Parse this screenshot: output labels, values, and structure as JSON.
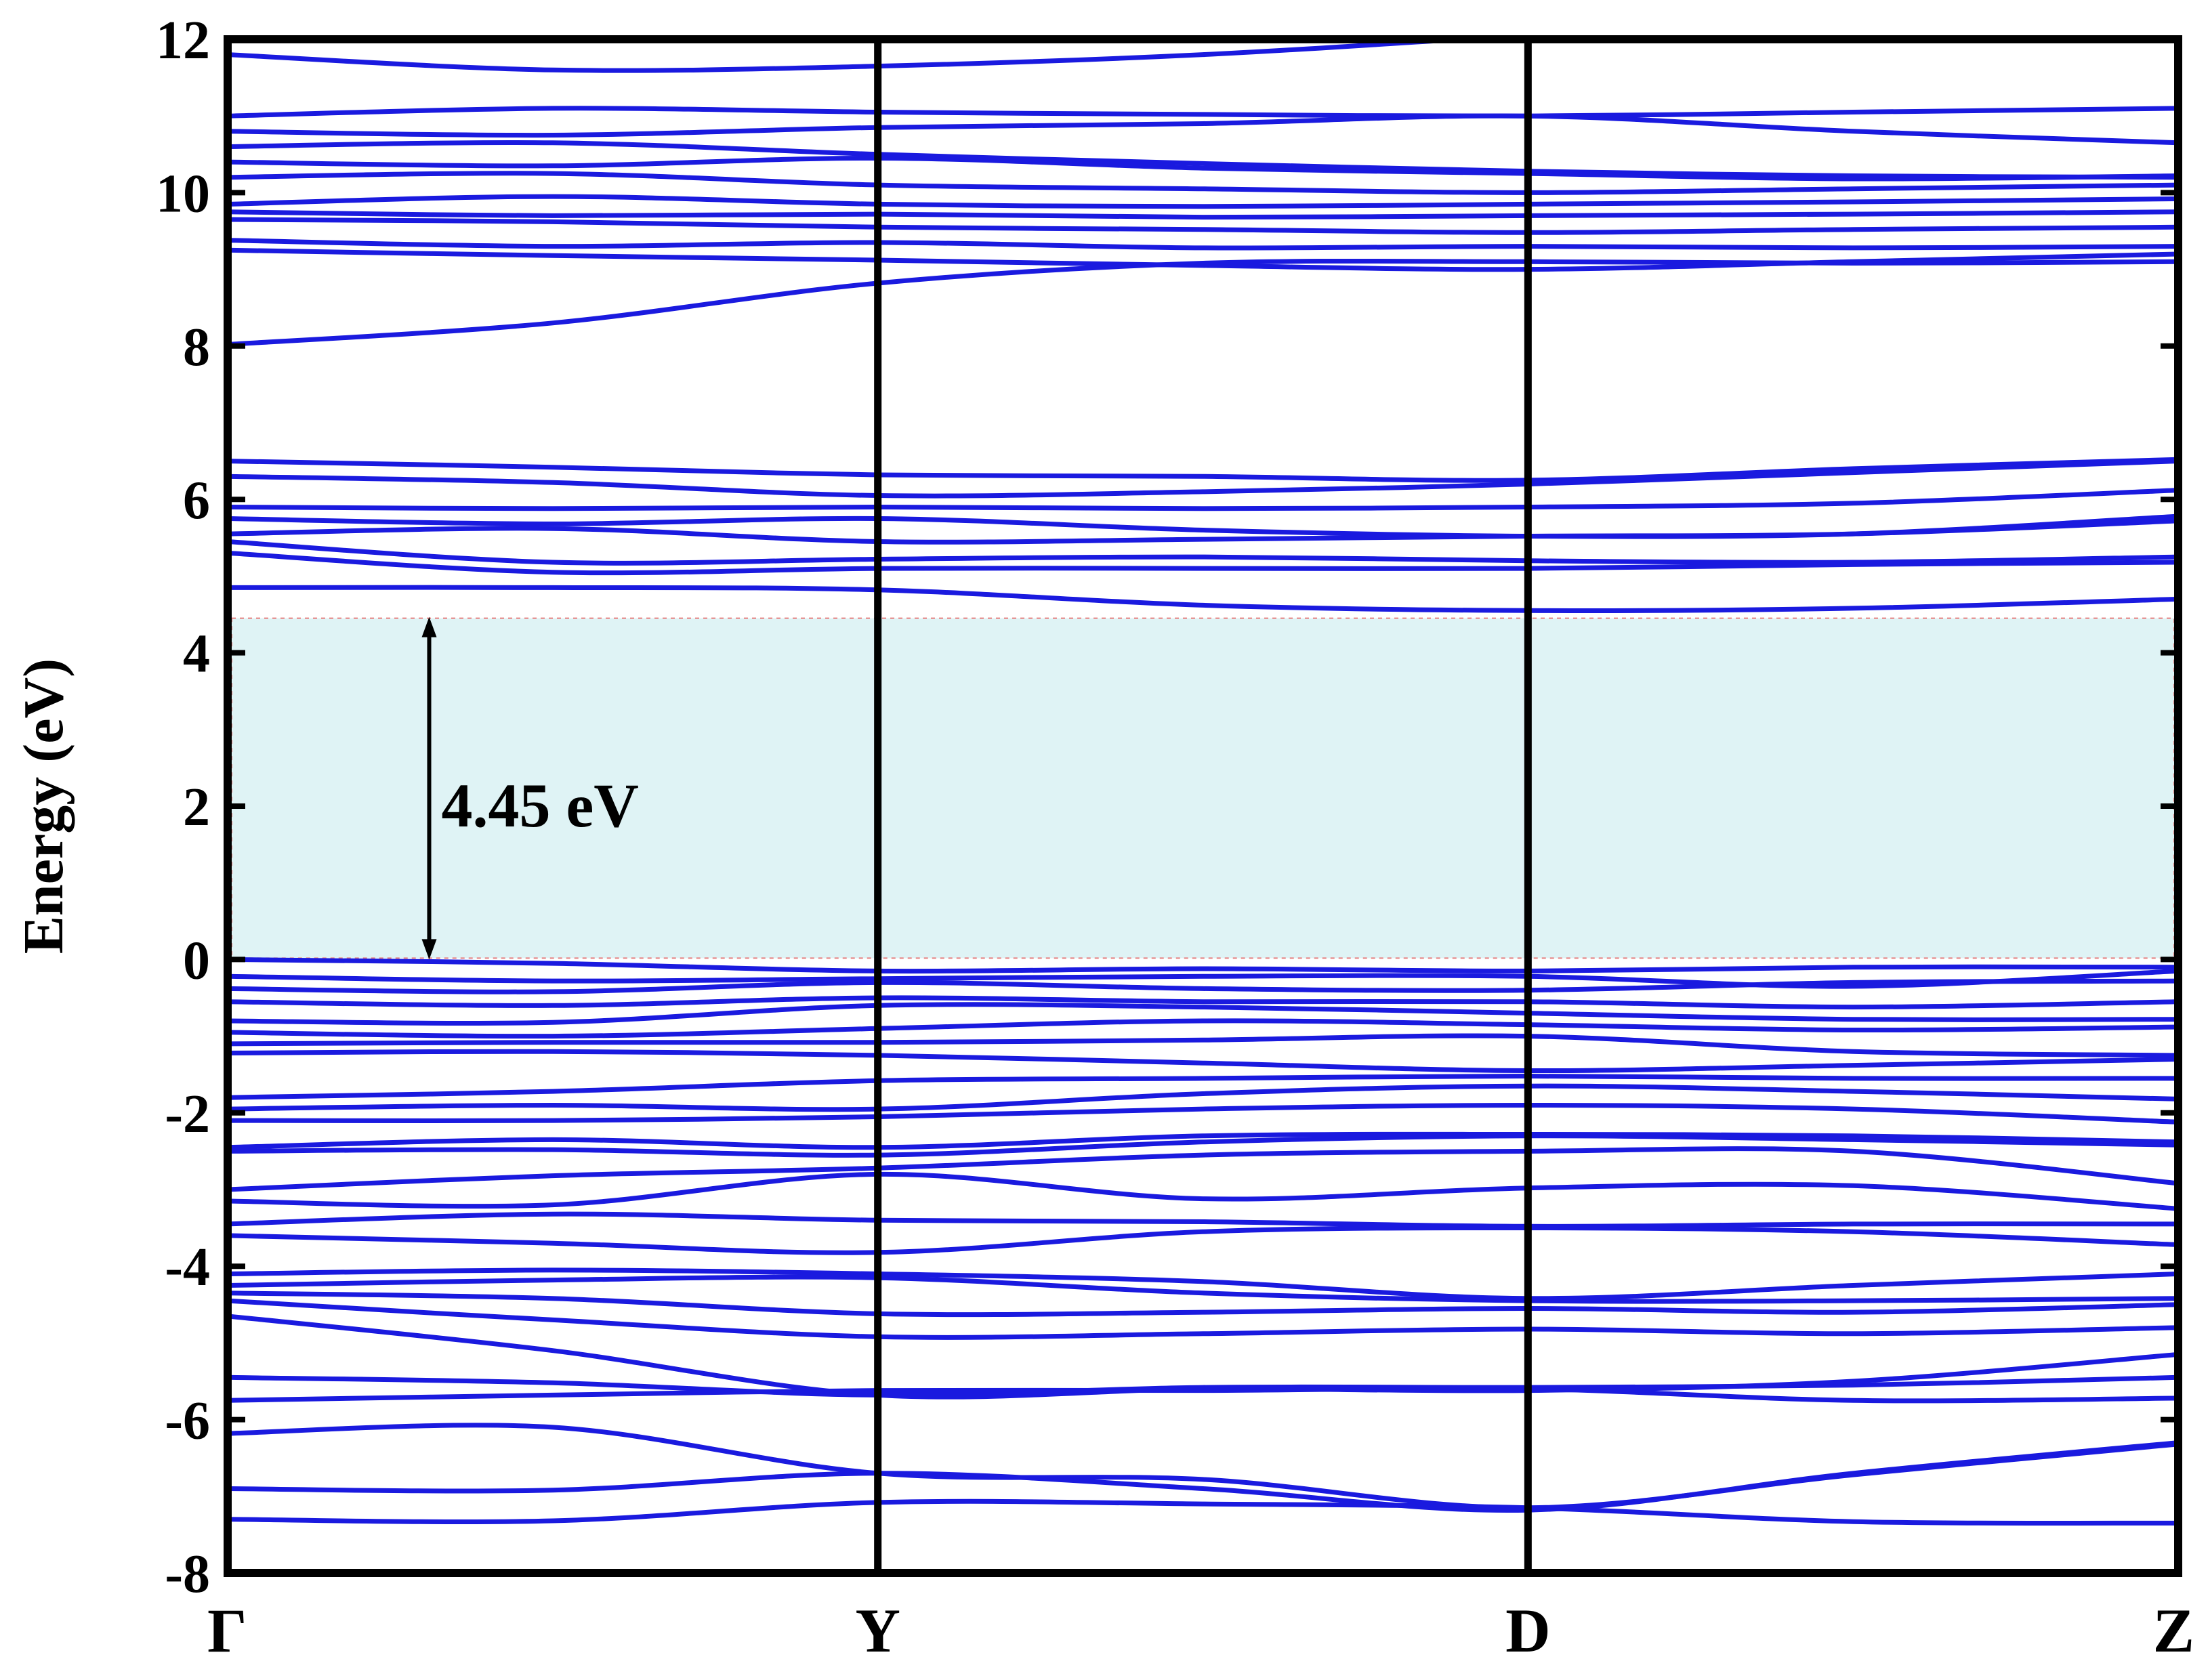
{
  "chart_data": {
    "type": "line",
    "ylabel": "Energy (eV)",
    "ylim": [
      -8,
      12
    ],
    "yticks": [
      -8,
      -6,
      -4,
      -2,
      0,
      2,
      4,
      6,
      8,
      10,
      12
    ],
    "ytick_labels": [
      "-8",
      "-6",
      "-4",
      "-2",
      "0",
      "2",
      "4",
      "6",
      "8",
      "10",
      "12"
    ],
    "xticks": [
      0,
      1,
      2,
      3
    ],
    "xtick_labels": [
      "Γ",
      "Y",
      "D",
      "Z"
    ],
    "xlim": [
      0,
      3
    ],
    "grid": false,
    "gap": {
      "label": "4.45 eV",
      "vbm": 0.0,
      "cbm": 4.45,
      "x": 0.31
    },
    "colors": {
      "bands": "#1a1adf",
      "gap_fill": "#dff3f5",
      "gap_border": "#e58080",
      "frame": "#000000"
    },
    "band_x": [
      0,
      0.5,
      1,
      1.5,
      2,
      2.5,
      3
    ],
    "bands": [
      [
        -7.3,
        -7.32,
        -7.08,
        -7.1,
        -7.15,
        -7.33,
        -7.35
      ],
      [
        -6.9,
        -6.92,
        -6.7,
        -6.9,
        -7.18,
        -6.7,
        -6.3
      ],
      [
        -6.18,
        -6.1,
        -6.7,
        -6.78,
        -7.15,
        -6.72,
        -6.32
      ],
      [
        -5.75,
        -5.68,
        -5.62,
        -5.62,
        -5.6,
        -5.75,
        -5.72
      ],
      [
        -5.45,
        -5.52,
        -5.68,
        -5.58,
        -5.58,
        -5.55,
        -5.45
      ],
      [
        -4.65,
        -5.1,
        -5.68,
        -5.6,
        -5.62,
        -5.5,
        -5.15
      ],
      [
        -4.45,
        -4.7,
        -4.92,
        -4.88,
        -4.82,
        -4.88,
        -4.8
      ],
      [
        -4.35,
        -4.42,
        -4.62,
        -4.6,
        -4.55,
        -4.6,
        -4.5
      ],
      [
        -4.25,
        -4.18,
        -4.15,
        -4.35,
        -4.45,
        -4.45,
        -4.42
      ],
      [
        -4.1,
        -4.05,
        -4.1,
        -4.2,
        -4.42,
        -4.25,
        -4.1
      ],
      [
        -3.6,
        -3.7,
        -3.82,
        -3.55,
        -3.5,
        -3.55,
        -3.72
      ],
      [
        -3.45,
        -3.32,
        -3.4,
        -3.42,
        -3.48,
        -3.45,
        -3.45
      ],
      [
        -3.15,
        -3.2,
        -2.8,
        -3.12,
        -2.98,
        -2.95,
        -3.25
      ],
      [
        -3.0,
        -2.82,
        -2.72,
        -2.55,
        -2.5,
        -2.5,
        -2.92
      ],
      [
        -2.5,
        -2.48,
        -2.55,
        -2.38,
        -2.3,
        -2.35,
        -2.42
      ],
      [
        -2.45,
        -2.35,
        -2.45,
        -2.3,
        -2.28,
        -2.3,
        -2.38
      ],
      [
        -2.1,
        -2.1,
        -2.05,
        -1.95,
        -1.9,
        -1.95,
        -2.12
      ],
      [
        -1.95,
        -1.9,
        -1.95,
        -1.75,
        -1.65,
        -1.72,
        -1.82
      ],
      [
        -1.8,
        -1.72,
        -1.58,
        -1.55,
        -1.52,
        -1.55,
        -1.55
      ],
      [
        -1.22,
        -1.2,
        -1.25,
        -1.35,
        -1.45,
        -1.38,
        -1.3
      ],
      [
        -1.1,
        -1.08,
        -1.08,
        -1.05,
        -1.0,
        -1.2,
        -1.25
      ],
      [
        -0.95,
        -1.0,
        -0.9,
        -0.8,
        -0.85,
        -0.92,
        -0.88
      ],
      [
        -0.8,
        -0.82,
        -0.6,
        -0.62,
        -0.7,
        -0.78,
        -0.78
      ],
      [
        -0.55,
        -0.6,
        -0.5,
        -0.55,
        -0.55,
        -0.62,
        -0.55
      ],
      [
        -0.38,
        -0.42,
        -0.3,
        -0.38,
        -0.4,
        -0.3,
        -0.28
      ],
      [
        -0.22,
        -0.28,
        -0.25,
        -0.22,
        -0.22,
        -0.35,
        -0.15
      ],
      [
        0.0,
        -0.05,
        -0.15,
        -0.12,
        -0.15,
        -0.1,
        -0.1
      ],
      [
        4.85,
        4.85,
        4.82,
        4.62,
        4.55,
        4.58,
        4.7
      ],
      [
        5.3,
        5.05,
        5.1,
        5.1,
        5.1,
        5.15,
        5.18
      ],
      [
        5.45,
        5.18,
        5.22,
        5.25,
        5.2,
        5.18,
        5.25
      ],
      [
        5.55,
        5.62,
        5.45,
        5.48,
        5.52,
        5.55,
        5.72
      ],
      [
        5.75,
        5.68,
        5.75,
        5.6,
        5.52,
        5.55,
        5.78
      ],
      [
        5.9,
        5.88,
        5.9,
        5.88,
        5.9,
        5.95,
        6.12
      ],
      [
        6.3,
        6.22,
        6.05,
        6.1,
        6.2,
        6.35,
        6.5
      ],
      [
        6.5,
        6.42,
        6.32,
        6.3,
        6.25,
        6.4,
        6.52
      ],
      [
        8.02,
        8.3,
        8.82,
        9.08,
        9.1,
        9.08,
        9.1
      ],
      [
        9.25,
        9.18,
        9.12,
        9.05,
        9.0,
        9.1,
        9.2
      ],
      [
        9.38,
        9.3,
        9.35,
        9.28,
        9.3,
        9.28,
        9.3
      ],
      [
        9.65,
        9.62,
        9.55,
        9.52,
        9.48,
        9.52,
        9.55
      ],
      [
        9.75,
        9.7,
        9.72,
        9.68,
        9.7,
        9.72,
        9.75
      ],
      [
        9.85,
        9.95,
        9.85,
        9.82,
        9.85,
        9.88,
        9.92
      ],
      [
        10.2,
        10.25,
        10.1,
        10.05,
        10.0,
        10.05,
        10.1
      ],
      [
        10.4,
        10.35,
        10.45,
        10.32,
        10.25,
        10.18,
        10.22
      ],
      [
        10.6,
        10.65,
        10.5,
        10.38,
        10.28,
        10.22,
        10.2
      ],
      [
        10.8,
        10.75,
        10.85,
        10.9,
        11.0,
        10.8,
        10.65
      ],
      [
        11.0,
        11.1,
        11.05,
        11.02,
        11.0,
        11.05,
        11.1
      ],
      [
        11.8,
        11.6,
        11.65,
        11.8,
        12.05,
        12.25,
        12.4
      ]
    ]
  }
}
